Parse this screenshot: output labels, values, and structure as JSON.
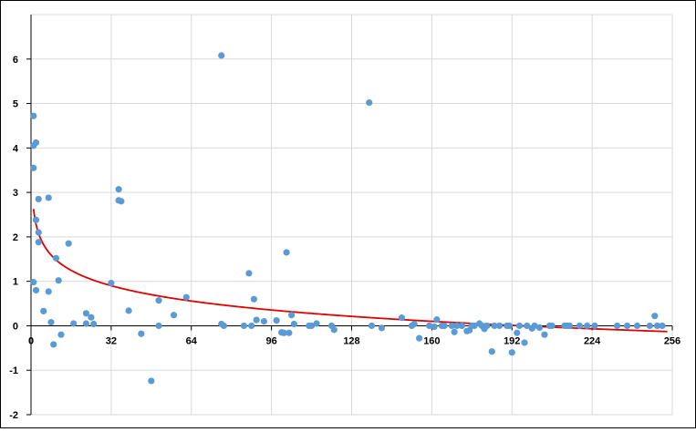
{
  "chart_data": {
    "type": "scatter",
    "title": "",
    "xlabel": "",
    "ylabel": "",
    "xlim": [
      0,
      256
    ],
    "ylim": [
      -2,
      7
    ],
    "xticks": [
      "0",
      "32",
      "64",
      "96",
      "128",
      "160",
      "192",
      "224",
      "256"
    ],
    "xtick_values": [
      0,
      32,
      64,
      96,
      128,
      160,
      192,
      224,
      256
    ],
    "yticks": [
      "-2",
      "-1",
      "0",
      "1",
      "2",
      "3",
      "4",
      "5",
      "6"
    ],
    "ytick_values": [
      -2,
      -1,
      0,
      1,
      2,
      3,
      4,
      5,
      6
    ],
    "grid": true,
    "legend": "none",
    "colors": {
      "points": "#5b9bd5",
      "trend": "#e00000",
      "grid": "#d9d9d9",
      "axis": "#000000"
    },
    "series": [
      {
        "type": "scatter",
        "x": [
          1,
          1,
          1,
          1,
          2,
          2,
          2,
          3,
          3,
          3,
          5,
          7,
          7,
          8,
          9,
          10,
          11,
          12,
          15,
          17,
          22,
          22,
          24,
          25,
          32,
          35,
          35,
          36,
          39,
          44,
          48,
          51,
          51,
          57,
          62,
          76,
          76,
          77,
          85,
          87,
          88,
          89,
          90,
          93,
          98,
          100,
          101,
          102,
          103,
          104,
          105,
          111,
          112,
          114,
          120,
          121,
          135,
          136,
          140,
          148,
          152,
          153,
          155,
          159,
          161,
          162,
          164,
          165,
          168,
          169,
          170,
          172,
          174,
          175,
          176,
          177,
          179,
          180,
          181,
          182,
          184,
          185,
          187,
          190,
          191,
          192,
          194,
          195,
          197,
          198,
          200,
          201,
          203,
          205,
          207,
          208,
          213,
          214,
          215,
          219,
          222,
          225,
          234,
          238,
          242,
          247,
          249,
          250,
          252
        ],
        "y": [
          4.72,
          4.05,
          3.55,
          0.98,
          4.12,
          2.38,
          0.8,
          2.85,
          1.88,
          2.1,
          0.33,
          2.88,
          0.77,
          0.08,
          -0.42,
          1.52,
          1.02,
          -0.2,
          1.85,
          0.05,
          0.28,
          0.05,
          0.19,
          0.04,
          0.96,
          3.07,
          2.82,
          2.8,
          0.34,
          -0.18,
          -1.24,
          0.0,
          0.57,
          0.24,
          0.64,
          6.08,
          0.04,
          0.0,
          0.0,
          1.18,
          0.0,
          0.6,
          0.13,
          0.1,
          0.12,
          -0.15,
          -0.16,
          1.65,
          -0.16,
          0.24,
          0.04,
          0.0,
          0.0,
          0.05,
          0.0,
          -0.09,
          5.02,
          0.0,
          -0.05,
          0.18,
          0.0,
          0.04,
          -0.28,
          0.0,
          -0.02,
          0.14,
          0.0,
          0.0,
          0.0,
          -0.14,
          0.0,
          0.0,
          -0.12,
          -0.1,
          0.0,
          0.0,
          0.05,
          0.0,
          -0.07,
          0.0,
          -0.58,
          0.0,
          0.0,
          0.0,
          0.0,
          -0.6,
          -0.16,
          0.0,
          -0.38,
          0.0,
          -0.06,
          0.0,
          -0.04,
          -0.2,
          0.0,
          0.0,
          0.0,
          0.0,
          0.0,
          0.0,
          0.0,
          0.0,
          0.0,
          0.0,
          0.0,
          0.0,
          0.22,
          0.0,
          0.0
        ]
      },
      {
        "type": "line",
        "model": "log",
        "a": 2.628,
        "b": -0.4981,
        "x_start": 1,
        "x_end": 254
      }
    ]
  }
}
